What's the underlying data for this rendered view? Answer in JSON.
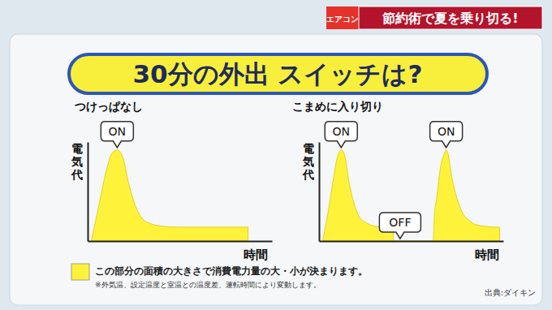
{
  "header": {
    "tag": "エアコン",
    "title": "節約術で夏を乗り切る!"
  },
  "title": "30分の外出 スイッチは?",
  "chart_data": [
    {
      "type": "area",
      "title": "つけっぱなし",
      "xlabel": "時間",
      "ylabel": "電気代",
      "color": "#fff23b",
      "tick_labels": false,
      "grid": false,
      "xlim": [
        0,
        100
      ],
      "ylim": [
        0,
        100
      ],
      "x": [
        2,
        6,
        10,
        13,
        16,
        19,
        22,
        26,
        30,
        35,
        40,
        50,
        60,
        70,
        80,
        87
      ],
      "values": [
        0,
        35,
        70,
        88,
        92,
        85,
        60,
        35,
        22,
        17,
        15,
        14,
        14,
        14,
        14,
        14
      ],
      "annotations": [
        {
          "text": "ON",
          "x": 16
        }
      ]
    },
    {
      "type": "area",
      "title": "こまめに入り切り",
      "xlabel": "時間",
      "ylabel": "電気代",
      "color": "#fff23b",
      "tick_labels": false,
      "grid": false,
      "xlim": [
        0,
        100
      ],
      "ylim": [
        0,
        100
      ],
      "x": [
        2,
        5,
        8,
        10,
        12,
        14,
        16,
        19,
        22,
        26,
        30,
        35,
        40,
        40.5,
        45,
        50,
        55,
        62,
        62.5,
        64,
        66,
        68,
        69,
        70,
        72,
        75,
        78,
        82,
        86,
        90,
        95,
        98
      ],
      "values": [
        0,
        30,
        65,
        85,
        92,
        86,
        62,
        38,
        24,
        18,
        15,
        14,
        14,
        0,
        0,
        0,
        0,
        0,
        22,
        45,
        75,
        88,
        92,
        88,
        65,
        42,
        28,
        20,
        16,
        15,
        14,
        14
      ],
      "annotations": [
        {
          "text": "ON",
          "x": 12
        },
        {
          "text": "OFF",
          "x": 44
        },
        {
          "text": "ON",
          "x": 69
        }
      ]
    }
  ],
  "note": {
    "text": "この部分の面積の大きさで消費電力量の大・小が決まります。",
    "subtext": "※外気温、設定温度と室温との温度差、運転時間により変動します。"
  },
  "source": "出典:ダイキン"
}
